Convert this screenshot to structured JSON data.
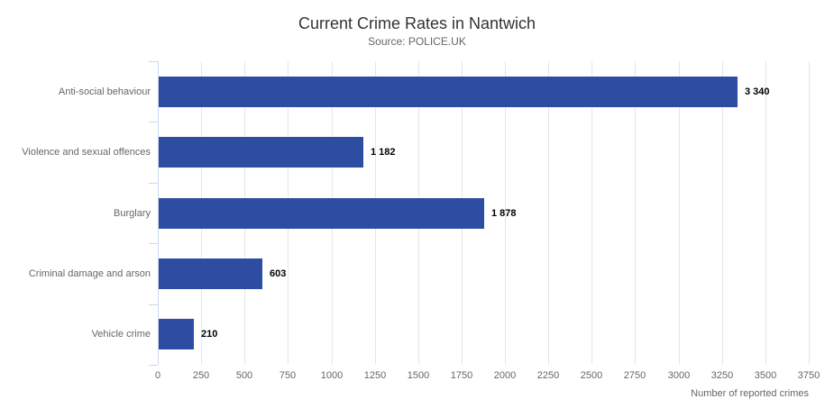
{
  "page": {
    "title": "Current Crime Rates in Nantwich",
    "subtitle": "Source: POLICE.UK"
  },
  "chart_data": {
    "type": "bar",
    "orientation": "horizontal",
    "title": "Current Crime Rates in Nantwich",
    "subtitle": "Source: POLICE.UK",
    "categories": [
      "Anti-social behaviour",
      "Violence and sexual offences",
      "Burglary",
      "Criminal damage and arson",
      "Vehicle crime"
    ],
    "values": [
      3340,
      1182,
      1878,
      603,
      210
    ],
    "value_labels": [
      "3 340",
      "1 182",
      "1 878",
      "603",
      "210"
    ],
    "xlabel": "Number of reported crimes",
    "xlim": [
      0,
      3750
    ],
    "x_tick_step": 250,
    "x_tick_labels": [
      "0",
      "250",
      "500",
      "750",
      "1000",
      "1250",
      "1500",
      "1750",
      "2000",
      "2250",
      "2500",
      "2750",
      "3000",
      "3250",
      "3500",
      "3750"
    ],
    "grid": true,
    "legend": false,
    "colors": {
      "bar": "#2c4da2",
      "gridline": "#e6e6e6",
      "axis_line": "#ccd6eb",
      "title_text": "#333333",
      "secondary_text": "#666666",
      "value_label_text": "#000000",
      "background": "#ffffff"
    }
  }
}
